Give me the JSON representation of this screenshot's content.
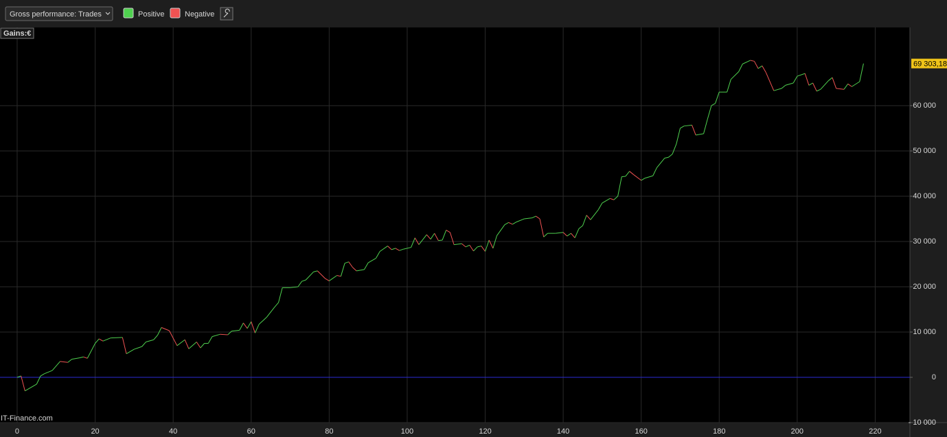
{
  "chart_data": {
    "type": "line",
    "selector": "Gross performance: Trades",
    "y_label": "Gains:€",
    "watermark": "IT-Finance.com",
    "legend": [
      {
        "name": "Positive",
        "color": "#4fd14f"
      },
      {
        "name": "Negative",
        "color": "#f05252"
      }
    ],
    "x": [
      0,
      1,
      2,
      5,
      6,
      7,
      9,
      11,
      13,
      14,
      16,
      17,
      18,
      20,
      21,
      22,
      24,
      27,
      28,
      30,
      32,
      33,
      35,
      36,
      37,
      39,
      41,
      43,
      44,
      46,
      47,
      48,
      49,
      50,
      52,
      54,
      55,
      57,
      58,
      59,
      60,
      61,
      62,
      64,
      66,
      67,
      68,
      70,
      72,
      73,
      74,
      76,
      77,
      79,
      80,
      82,
      83,
      84,
      85,
      86,
      87,
      89,
      90,
      92,
      93,
      95,
      96,
      97,
      98,
      99,
      101,
      102,
      103,
      105,
      106,
      107,
      108,
      109,
      110,
      111,
      112,
      114,
      115,
      116,
      117,
      118,
      119,
      120,
      121,
      122,
      123,
      125,
      126,
      127,
      128,
      130,
      132,
      133,
      134,
      135,
      136,
      138,
      140,
      141,
      142,
      143,
      144,
      145,
      146,
      147,
      149,
      150,
      152,
      153,
      154,
      155,
      156,
      157,
      158,
      160,
      161,
      163,
      164,
      166,
      167,
      168,
      169,
      170,
      171,
      173,
      174,
      176,
      177,
      178,
      179,
      180,
      182,
      183,
      185,
      186,
      188,
      189,
      190,
      191,
      192,
      194,
      196,
      197,
      199,
      200,
      202,
      203,
      204,
      205,
      206,
      208,
      209,
      210,
      212,
      213,
      214,
      216,
      217
    ],
    "values": [
      0,
      300,
      -3000,
      -1500,
      300,
      800,
      1500,
      3500,
      3300,
      4000,
      4300,
      4500,
      4200,
      7500,
      8500,
      8000,
      8700,
      8800,
      5200,
      6200,
      6800,
      7800,
      8300,
      9300,
      11000,
      10300,
      7000,
      8300,
      6300,
      7800,
      6500,
      7500,
      7500,
      9000,
      9500,
      9400,
      10200,
      10400,
      12000,
      10800,
      12300,
      9800,
      11700,
      13300,
      15500,
      16500,
      19800,
      19800,
      20000,
      21200,
      21500,
      23300,
      23500,
      21800,
      21300,
      22500,
      22300,
      25200,
      25500,
      24300,
      23500,
      23800,
      25300,
      26300,
      27800,
      29000,
      28200,
      28500,
      28000,
      28300,
      28700,
      30800,
      29300,
      31500,
      30500,
      31800,
      30200,
      30300,
      32500,
      32000,
      29300,
      29500,
      28800,
      29200,
      27900,
      28800,
      29000,
      27800,
      30300,
      28500,
      31300,
      33700,
      34200,
      33800,
      34300,
      35000,
      35200,
      35600,
      35000,
      31000,
      31800,
      31800,
      32000,
      31200,
      31800,
      30800,
      32800,
      33500,
      35800,
      34800,
      37000,
      38500,
      39500,
      39200,
      40000,
      44300,
      44400,
      45500,
      44800,
      43500,
      44000,
      44500,
      46300,
      48400,
      48600,
      49300,
      51500,
      55000,
      55500,
      55700,
      53500,
      53800,
      57000,
      60000,
      60500,
      63000,
      63000,
      65800,
      67500,
      69200,
      70000,
      69800,
      68200,
      68800,
      67300,
      63300,
      63800,
      64500,
      65000,
      66500,
      67100,
      64500,
      65000,
      63200,
      63600,
      65500,
      66200,
      63800,
      63600,
      64800,
      64200,
      65300,
      69303.18
    ],
    "last_value_label": "69 303,18",
    "zero_line_color": "#2b2bd6",
    "xlim": [
      -4.4,
      228.9
    ],
    "ylim": [
      -10000,
      77270
    ],
    "xticks": [
      0,
      20,
      40,
      60,
      80,
      100,
      120,
      140,
      160,
      180,
      200,
      220
    ],
    "yticks": [
      {
        "value": -10000,
        "label": "- 10 000"
      },
      0,
      {
        "value": 10000,
        "label": "10 000"
      },
      {
        "value": 20000,
        "label": "20 000"
      },
      {
        "value": 30000,
        "label": "30 000"
      },
      {
        "value": 40000,
        "label": "40 000"
      },
      {
        "value": 50000,
        "label": "50 000"
      },
      {
        "value": 60000,
        "label": "60 000"
      }
    ],
    "grid": true
  }
}
